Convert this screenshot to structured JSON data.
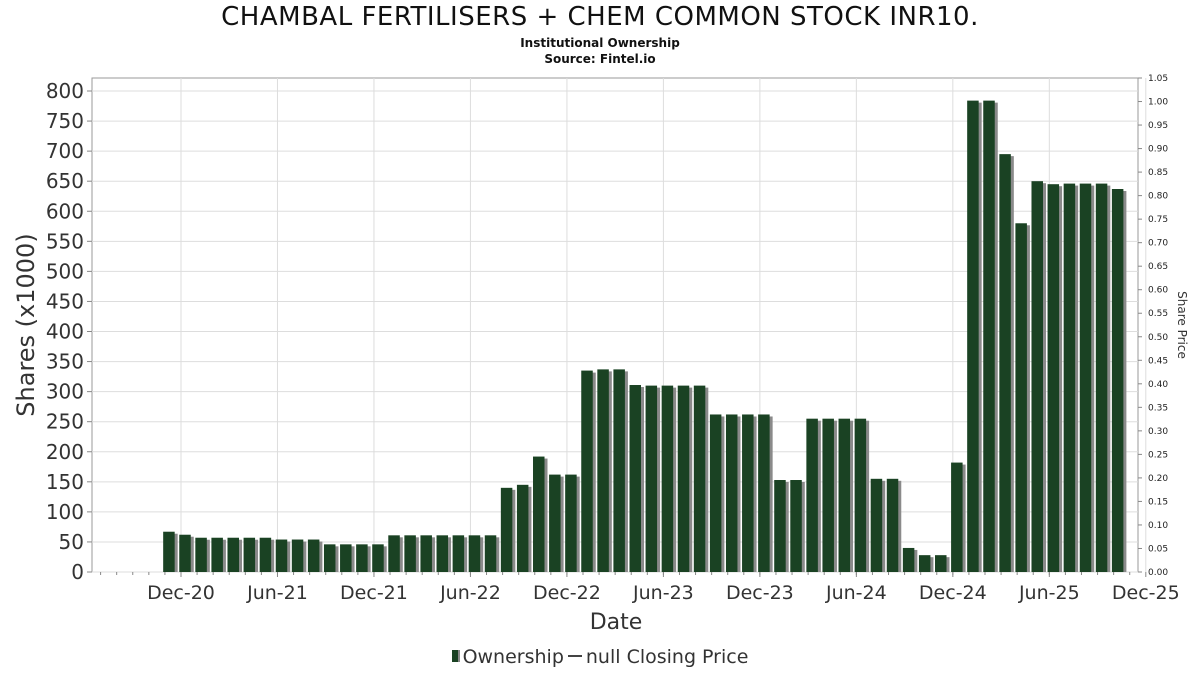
{
  "header": {
    "title": "CHAMBAL FERTILISERS + CHEM COMMON STOCK INR10.",
    "subtitle": "Institutional Ownership",
    "source": "Source: Fintel.io"
  },
  "legend": {
    "ownership_label": "Ownership",
    "price_label": "null Closing Price"
  },
  "colors": {
    "bar": "#1a4223",
    "bar_shadow": "#8a8a8a",
    "grid": "#dddddd",
    "axis": "#888888"
  },
  "chart_data": {
    "type": "bar",
    "title": "CHAMBAL FERTILISERS + CHEM COMMON STOCK INR10.",
    "subtitle": "Institutional Ownership",
    "xlabel": "Date",
    "ylabel": "Shares (x1000)",
    "y2label": "Share Price",
    "ylim": [
      0,
      800
    ],
    "y2lim": [
      0,
      1.05
    ],
    "xlim": [
      "2020-09-01",
      "2025-12-31"
    ],
    "grid": true,
    "legend_position": "bottom",
    "x_tick_labels": [
      "Dec-20",
      "Jun-21",
      "Dec-21",
      "Jun-22",
      "Dec-22",
      "Jun-23",
      "Dec-23",
      "Jun-24",
      "Dec-24",
      "Jun-25",
      "Dec-25"
    ],
    "y_tick_labels": [
      "0",
      "50",
      "100",
      "150",
      "200",
      "250",
      "300",
      "350",
      "400",
      "450",
      "500",
      "550",
      "600",
      "650",
      "700",
      "750",
      "800"
    ],
    "y2_tick_labels": [
      "0.00",
      "0.05",
      "0.10",
      "0.15",
      "0.20",
      "0.25",
      "0.30",
      "0.35",
      "0.40",
      "0.45",
      "0.50",
      "0.55",
      "0.60",
      "0.65",
      "0.70",
      "0.75",
      "0.80",
      "0.85",
      "0.90",
      "0.95",
      "1.00",
      "1.05"
    ],
    "series": [
      {
        "name": "Ownership",
        "values": [
          67,
          62,
          57,
          57,
          57,
          57,
          57,
          54,
          54,
          54,
          46,
          46,
          46,
          46,
          61,
          61,
          61,
          61,
          61,
          61,
          61,
          140,
          145,
          192,
          162,
          162,
          335,
          337,
          337,
          311,
          310,
          310,
          310,
          310,
          262,
          262,
          262,
          262,
          153,
          153,
          255,
          255,
          255,
          255,
          155,
          155,
          40,
          28,
          28,
          182,
          784,
          784,
          695,
          580,
          650,
          645,
          646,
          646,
          646,
          637
        ]
      }
    ]
  }
}
